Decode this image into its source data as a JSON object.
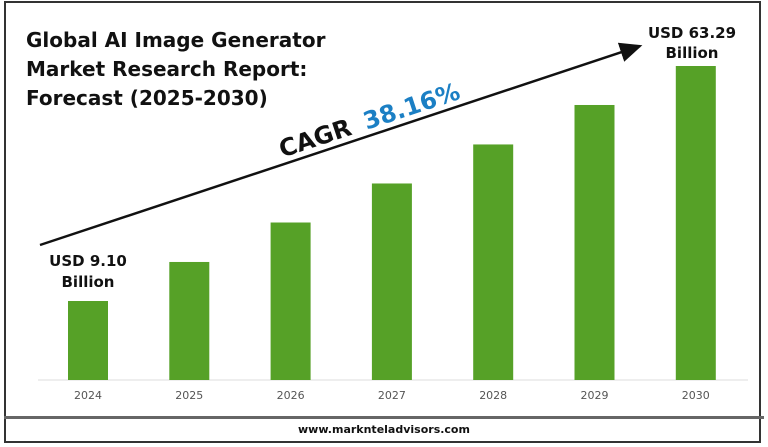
{
  "chart_data": {
    "type": "bar",
    "title": "Global AI Image Generator\nMarket Research Report:\nForecast (2025-2030)",
    "categories": [
      "2024",
      "2025",
      "2026",
      "2027",
      "2028",
      "2029",
      "2030"
    ],
    "values": [
      9.1,
      18.1,
      27.2,
      36.2,
      45.2,
      54.3,
      63.29
    ],
    "xlabel": "",
    "ylabel": "",
    "grid": false,
    "bar_color": "#56a127",
    "annotations": {
      "start_label": [
        "USD 9.10",
        "Billion"
      ],
      "end_label": [
        "USD 63.29",
        "Billion"
      ],
      "cagr_prefix": "CAGR",
      "cagr_value": "38.16%",
      "cagr_color": "#1b7fc4"
    }
  },
  "footer": "www.marknteladvisors.com"
}
